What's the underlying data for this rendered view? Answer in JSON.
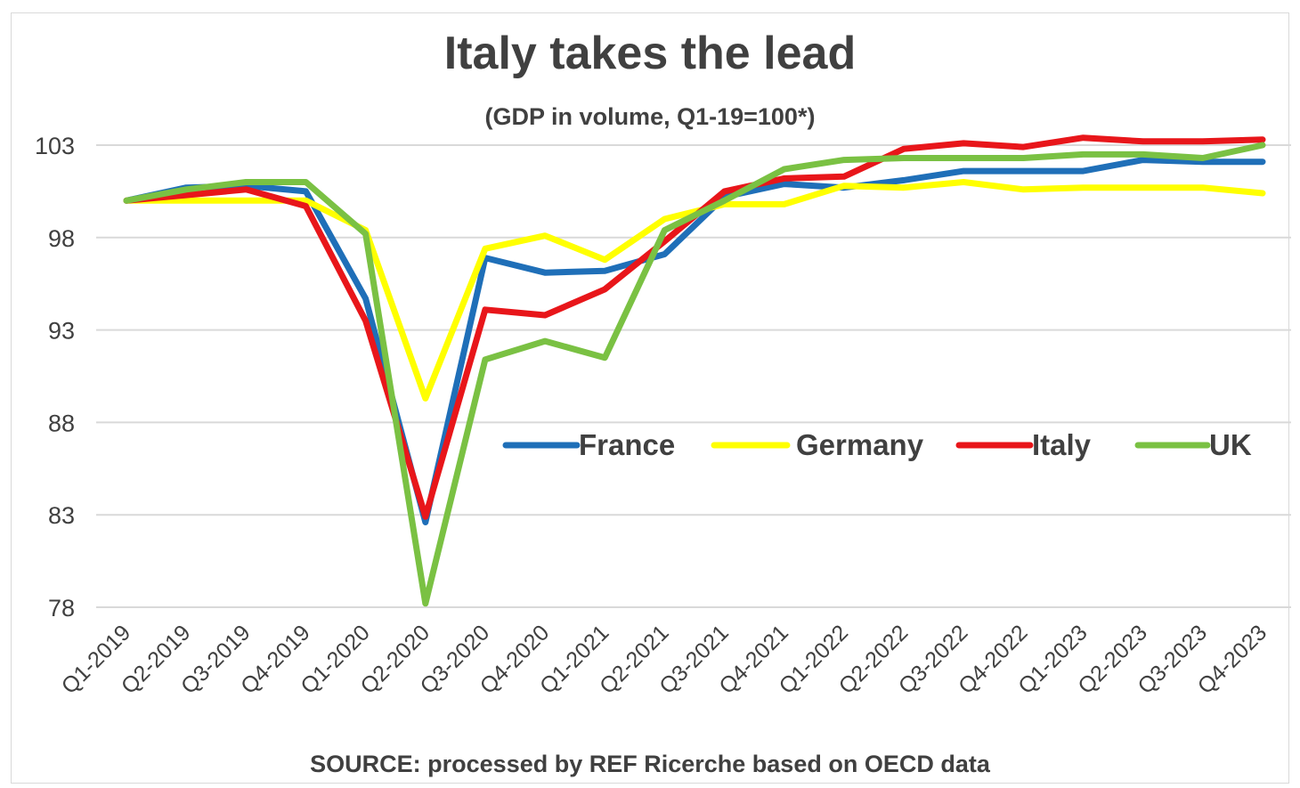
{
  "title": "Italy takes the lead",
  "subtitle": "(GDP in volume, Q1-19=100*)",
  "source": "SOURCE: processed by REF Ricerche based on OECD data",
  "chart_data": {
    "type": "line",
    "title": "Italy takes the lead",
    "subtitle": "(GDP in volume, Q1-19=100*)",
    "xlabel": "",
    "ylabel": "",
    "ylim": [
      78,
      105
    ],
    "yticks": [
      78,
      83,
      88,
      93,
      98,
      103
    ],
    "ytick_labels": [
      "78",
      "83",
      "88",
      "93",
      "98",
      "103"
    ],
    "grid": "horizontal",
    "legend_position": "center-right",
    "categories": [
      "Q1-2019",
      "Q2-2019",
      "Q3-2019",
      "Q4-2019",
      "Q1-2020",
      "Q2-2020",
      "Q3-2020",
      "Q4-2020",
      "Q1-2021",
      "Q2-2021",
      "Q3-2021",
      "Q4-2021",
      "Q1-2022",
      "Q2-2022",
      "Q3-2022",
      "Q4-2022",
      "Q1-2023",
      "Q2-2023",
      "Q3-2023",
      "Q4-2023"
    ],
    "series": [
      {
        "name": "France",
        "color": "#1f6fb8",
        "values": [
          100.0,
          100.7,
          100.8,
          100.5,
          94.7,
          82.6,
          96.9,
          96.1,
          96.2,
          97.1,
          100.2,
          100.9,
          100.7,
          101.1,
          101.6,
          101.6,
          101.6,
          102.2,
          102.1,
          102.1
        ]
      },
      {
        "name": "Germany",
        "color": "#ffff00",
        "values": [
          100.0,
          100.0,
          100.0,
          100.0,
          98.4,
          89.3,
          97.4,
          98.1,
          96.8,
          99.0,
          99.8,
          99.8,
          100.8,
          100.7,
          101.0,
          100.6,
          100.7,
          100.7,
          100.7,
          100.4
        ]
      },
      {
        "name": "Italy",
        "color": "#e8161a",
        "values": [
          100.0,
          100.3,
          100.6,
          99.7,
          93.5,
          82.9,
          94.1,
          93.8,
          95.2,
          97.8,
          100.5,
          101.2,
          101.3,
          102.8,
          103.1,
          102.9,
          103.4,
          103.2,
          103.2,
          103.3
        ]
      },
      {
        "name": "UK",
        "color": "#7ac143",
        "values": [
          100.0,
          100.6,
          101.0,
          101.0,
          98.2,
          78.2,
          91.4,
          92.4,
          91.5,
          98.4,
          100.0,
          101.7,
          102.2,
          102.3,
          102.3,
          102.3,
          102.5,
          102.5,
          102.3,
          103.0
        ]
      }
    ]
  }
}
